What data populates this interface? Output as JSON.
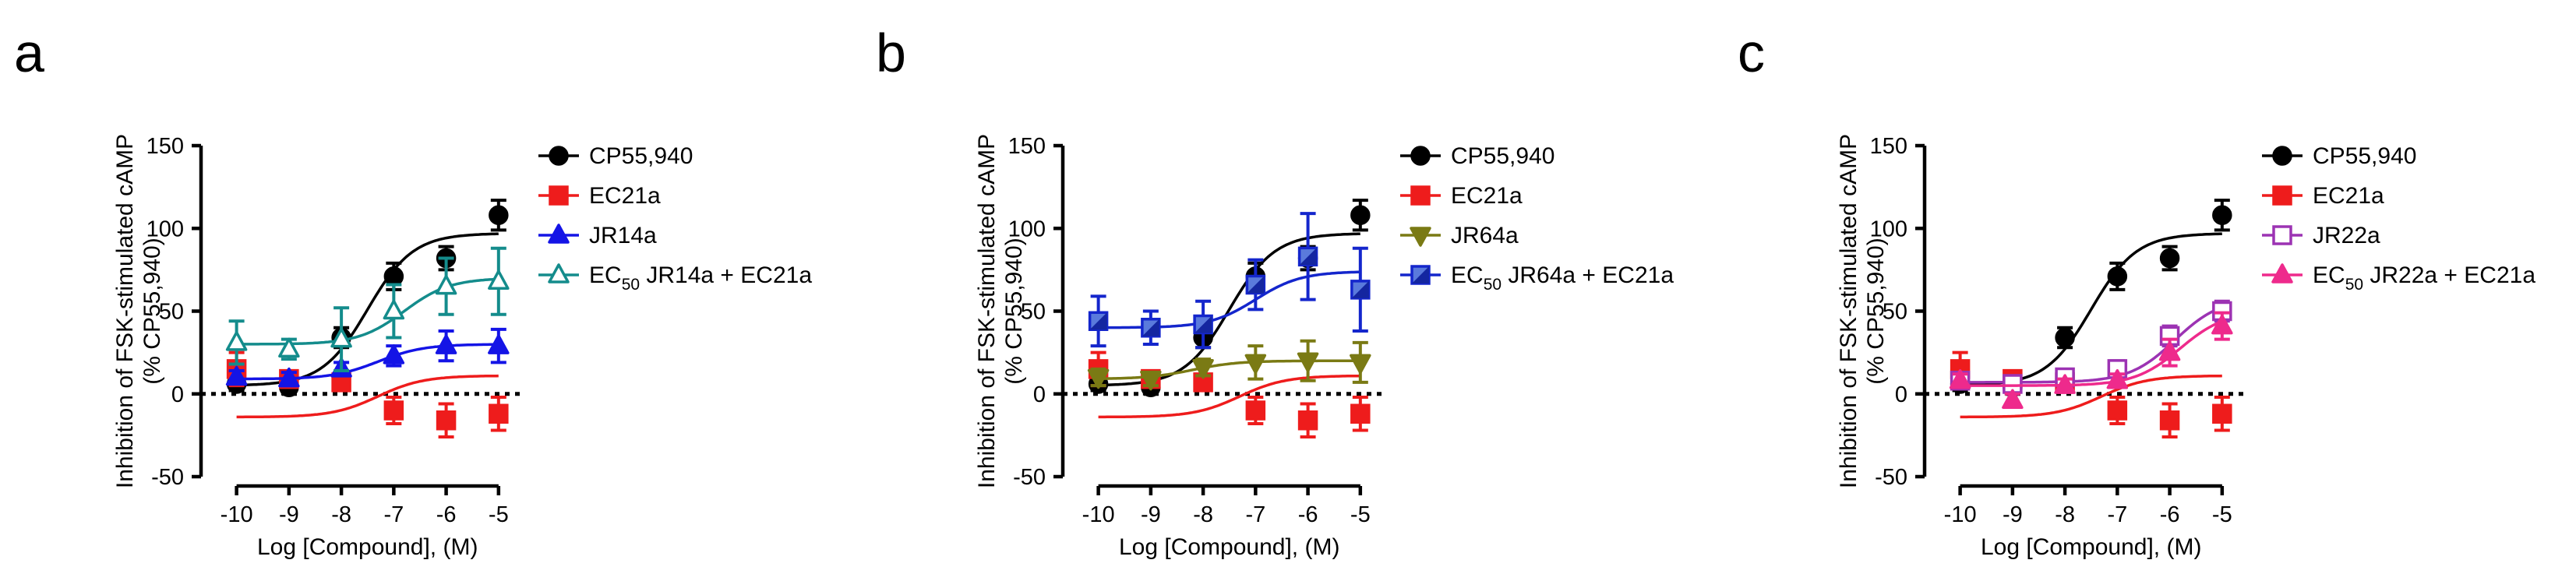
{
  "figure": {
    "panel_letters": [
      "a",
      "b",
      "c"
    ]
  },
  "chart_data": [
    {
      "panel": "a",
      "type": "scatter",
      "title": "",
      "xlabel": "Log [Compound], (M)",
      "ylabel": "Inhibition of FSK-stimulated cAMP",
      "ylabel2": "(% CP55,940)",
      "xlim": [
        -10.5,
        -4.7
      ],
      "ylim": [
        -50,
        150
      ],
      "xticks": [
        -10,
        -9,
        -8,
        -7,
        -6,
        -5
      ],
      "yticks": [
        -50,
        0,
        50,
        100,
        150
      ],
      "grid": false,
      "reference_line": 0,
      "legend_position": "right",
      "series": [
        {
          "name": "CP55,940",
          "color": "#000000",
          "marker": "circle",
          "filled": true,
          "x": [
            -10,
            -9,
            -8,
            -7,
            -6,
            -5
          ],
          "y": [
            6,
            4,
            34,
            71,
            82,
            108
          ],
          "err": [
            4,
            4,
            6,
            8,
            7,
            9
          ],
          "fit": {
            "bottom": 5,
            "top": 97,
            "logec50": -7.5,
            "hill": 1
          }
        },
        {
          "name": "EC21a",
          "color": "#ee1c1c",
          "marker": "square",
          "filled": true,
          "x": [
            -10,
            -9,
            -8,
            -7,
            -6,
            -5
          ],
          "y": [
            15,
            9,
            7,
            -10,
            -16,
            -12
          ],
          "err": [
            10,
            5,
            4,
            8,
            10,
            10
          ],
          "fit": {
            "bottom": -14,
            "top": 11,
            "logec50": -7.3,
            "hill": 1
          }
        },
        {
          "name": "JR14a",
          "color": "#1414e6",
          "marker": "triangle-up",
          "filled": true,
          "x": [
            -10,
            -9,
            -8,
            -7,
            -6,
            -5
          ],
          "y": [
            10,
            9,
            15,
            23,
            29,
            29
          ],
          "err": [
            4,
            4,
            4,
            6,
            9,
            10
          ],
          "fit": {
            "bottom": 9,
            "top": 30,
            "logec50": -7.3,
            "hill": 1
          }
        },
        {
          "label_prefix": "EC",
          "label_sub": "50",
          "label_suffix": " JR14a + EC21a",
          "color": "#148c8c",
          "marker": "triangle-up",
          "filled": false,
          "x": [
            -10,
            -9,
            -8,
            -7,
            -6,
            -5
          ],
          "y": [
            31,
            27,
            33,
            50,
            65,
            68
          ],
          "err": [
            13,
            6,
            19,
            16,
            17,
            20
          ],
          "fit": {
            "bottom": 30,
            "top": 70,
            "logec50": -6.8,
            "hill": 1
          }
        }
      ]
    },
    {
      "panel": "b",
      "type": "scatter",
      "title": "",
      "xlabel": "Log [Compound], (M)",
      "ylabel": "Inhibition of FSK-stimulated cAMP",
      "ylabel2": "(% CP55,940)",
      "xlim": [
        -10.5,
        -4.7
      ],
      "ylim": [
        -50,
        150
      ],
      "xticks": [
        -10,
        -9,
        -8,
        -7,
        -6,
        -5
      ],
      "yticks": [
        -50,
        0,
        50,
        100,
        150
      ],
      "grid": false,
      "reference_line": 0,
      "legend_position": "right",
      "series": [
        {
          "name": "CP55,940",
          "color": "#000000",
          "marker": "circle",
          "filled": true,
          "x": [
            -10,
            -9,
            -8,
            -7,
            -6,
            -5
          ],
          "y": [
            6,
            4,
            34,
            71,
            82,
            108
          ],
          "err": [
            4,
            4,
            6,
            8,
            7,
            9
          ],
          "fit": {
            "bottom": 5,
            "top": 97,
            "logec50": -7.5,
            "hill": 1
          }
        },
        {
          "name": "EC21a",
          "color": "#ee1c1c",
          "marker": "square",
          "filled": true,
          "x": [
            -10,
            -9,
            -8,
            -7,
            -6,
            -5
          ],
          "y": [
            15,
            9,
            7,
            -10,
            -16,
            -12
          ],
          "err": [
            10,
            5,
            4,
            8,
            10,
            10
          ],
          "fit": {
            "bottom": -14,
            "top": 11,
            "logec50": -7.3,
            "hill": 1
          }
        },
        {
          "name": "JR64a",
          "color": "#7a7a14",
          "marker": "triangle-down",
          "filled": true,
          "x": [
            -10,
            -9,
            -8,
            -7,
            -6,
            -5
          ],
          "y": [
            10,
            9,
            16,
            19,
            20,
            19
          ],
          "err": [
            5,
            4,
            5,
            10,
            12,
            12
          ],
          "fit": {
            "bottom": 9,
            "top": 20,
            "logec50": -8.2,
            "hill": 1
          }
        },
        {
          "label_prefix": "EC",
          "label_sub": "50",
          "label_suffix": " JR64a + EC21a",
          "color": "#1426cc",
          "marker": "square-half",
          "filled": true,
          "x": [
            -10,
            -9,
            -8,
            -7,
            -6,
            -5
          ],
          "y": [
            44,
            40,
            42,
            66,
            83,
            63
          ],
          "err": [
            15,
            10,
            14,
            15,
            26,
            25
          ],
          "fit": {
            "bottom": 40,
            "top": 74,
            "logec50": -7.0,
            "hill": 1
          }
        }
      ]
    },
    {
      "panel": "c",
      "type": "scatter",
      "title": "",
      "xlabel": "Log [Compound], (M)",
      "ylabel": "Inhibition of FSK-stimulated cAMP",
      "ylabel2": "(% CP55,940)",
      "xlim": [
        -10.5,
        -4.7
      ],
      "ylim": [
        -50,
        150
      ],
      "xticks": [
        -10,
        -9,
        -8,
        -7,
        -6,
        -5
      ],
      "yticks": [
        -50,
        0,
        50,
        100,
        150
      ],
      "grid": false,
      "reference_line": 0,
      "legend_position": "right",
      "series": [
        {
          "name": "CP55,940",
          "color": "#000000",
          "marker": "circle",
          "filled": true,
          "x": [
            -10,
            -9,
            -8,
            -7,
            -6,
            -5
          ],
          "y": [
            6,
            4,
            34,
            71,
            82,
            108
          ],
          "err": [
            4,
            4,
            6,
            8,
            7,
            9
          ],
          "fit": {
            "bottom": 5,
            "top": 97,
            "logec50": -7.5,
            "hill": 1
          }
        },
        {
          "name": "EC21a",
          "color": "#ee1c1c",
          "marker": "square",
          "filled": true,
          "x": [
            -10,
            -9,
            -8,
            -7,
            -6,
            -5
          ],
          "y": [
            15,
            9,
            7,
            -10,
            -16,
            -12
          ],
          "err": [
            10,
            5,
            4,
            8,
            10,
            10
          ],
          "fit": {
            "bottom": -14,
            "top": 11,
            "logec50": -7.3,
            "hill": 1
          }
        },
        {
          "name": "JR22a",
          "color": "#9c33b3",
          "marker": "square",
          "filled": false,
          "x": [
            -10,
            -9,
            -8,
            -7,
            -6,
            -5
          ],
          "y": [
            8,
            6,
            10,
            15,
            35,
            50
          ],
          "err": [
            4,
            4,
            4,
            5,
            6,
            6
          ],
          "fit": {
            "bottom": 7,
            "top": 58,
            "logec50": -5.9,
            "hill": 1
          }
        },
        {
          "label_prefix": "EC",
          "label_sub": "50",
          "label_suffix": " JR22a + EC21a",
          "color": "#ee2a8c",
          "marker": "triangle-up",
          "filled": true,
          "x": [
            -10,
            -9,
            -8,
            -7,
            -6,
            -5
          ],
          "y": [
            8,
            -4,
            5,
            8,
            25,
            41
          ],
          "err": [
            4,
            4,
            4,
            4,
            8,
            8
          ],
          "fit": {
            "bottom": 5,
            "top": 50,
            "logec50": -5.8,
            "hill": 1
          }
        }
      ]
    }
  ]
}
